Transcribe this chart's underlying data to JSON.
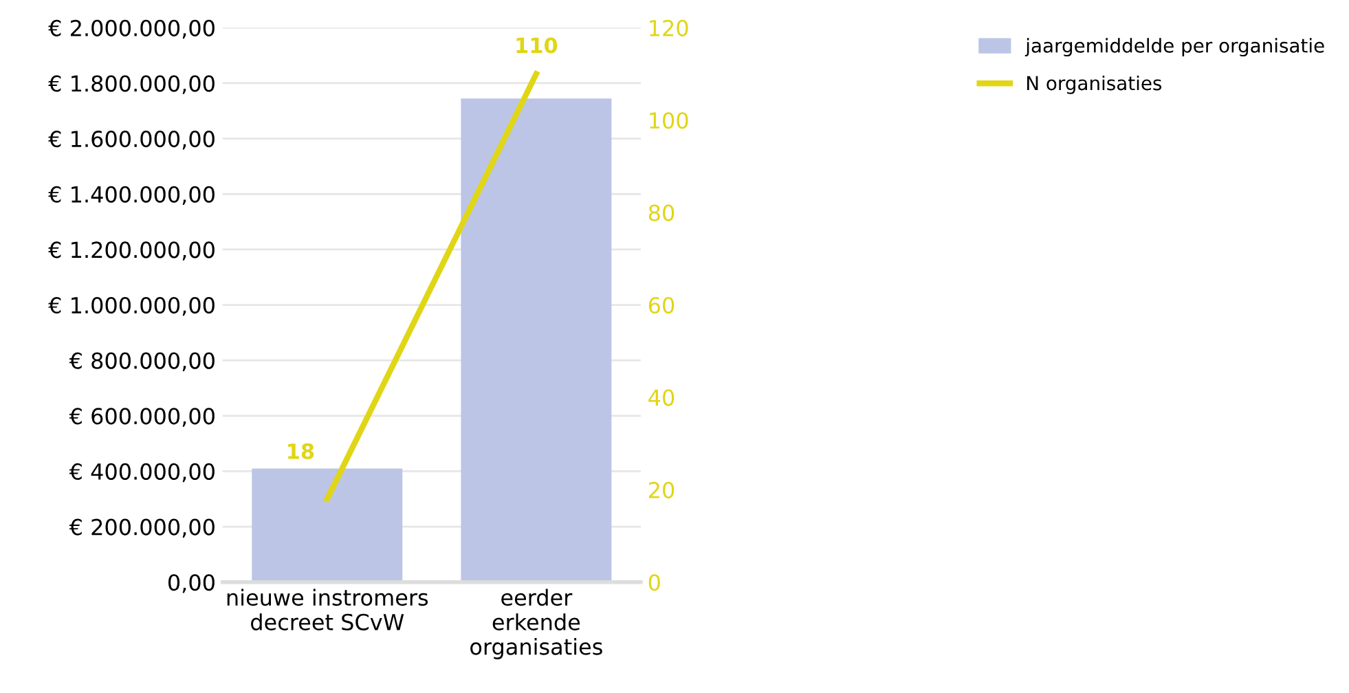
{
  "chart_data": {
    "type": "bar",
    "categories": [
      "nieuwe instromers\ndecreet SCvW",
      "eerder\nerkende\norganisaties"
    ],
    "series": [
      {
        "name": "jaargemiddelde per organisatie",
        "color": "#bcc5e6",
        "values": [
          410000,
          1745000
        ]
      },
      {
        "name": "N organisaties",
        "type": "line",
        "axis": "y2",
        "color": "#e0d615",
        "values": [
          18,
          110
        ],
        "value_labels": [
          "18",
          "110"
        ]
      }
    ],
    "ylim": [
      0,
      2000000
    ],
    "yticks": [
      {
        "value": 0,
        "label": "0,00"
      },
      {
        "value": 200000,
        "label": "€ 200.000,00"
      },
      {
        "value": 400000,
        "label": "€ 400.000,00"
      },
      {
        "value": 600000,
        "label": "€ 600.000,00"
      },
      {
        "value": 800000,
        "label": "€ 800.000,00"
      },
      {
        "value": 1000000,
        "label": "€ 1.000.000,00"
      },
      {
        "value": 1200000,
        "label": "€ 1.200.000,00"
      },
      {
        "value": 1400000,
        "label": "€ 1.400.000,00"
      },
      {
        "value": 1600000,
        "label": "€ 1.600.000,00"
      },
      {
        "value": 1800000,
        "label": "€ 1.800.000,00"
      },
      {
        "value": 2000000,
        "label": "€ 2.000.000,00"
      }
    ],
    "y2lim": [
      0,
      120
    ],
    "y2ticks": [
      0,
      20,
      40,
      60,
      80,
      100,
      120
    ],
    "grid": "y",
    "legend": "top right"
  }
}
